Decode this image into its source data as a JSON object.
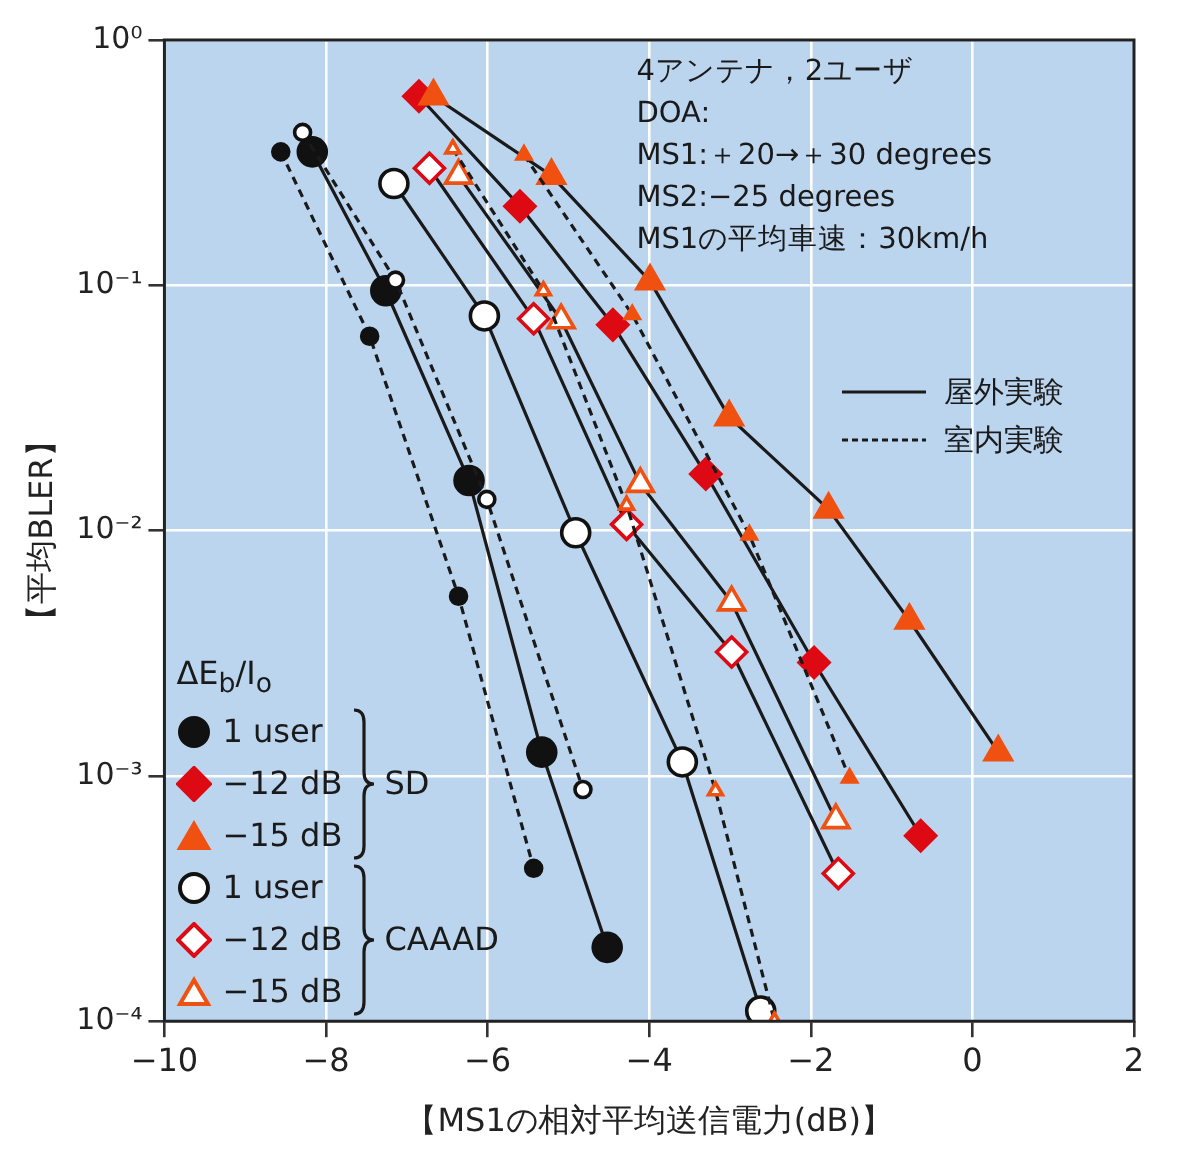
{
  "chart_data": {
    "type": "line",
    "xlabel": "【MS1の相対平均送信電力(dB)】",
    "ylabel": "【平均BLER】",
    "log": "y",
    "grid": true,
    "legend": "bottom left",
    "legend_title": "ΔE$_{b}$/I$_{o}$",
    "xlim": [
      -10,
      2
    ],
    "xticks": [
      {
        "value": -10,
        "label": "−10"
      },
      {
        "value": -8,
        "label": "−8"
      },
      {
        "value": -6,
        "label": "−6"
      },
      {
        "value": -4,
        "label": "−4"
      },
      {
        "value": -2,
        "label": "−2"
      },
      0,
      2
    ],
    "ylim": [
      0.0001,
      1
    ],
    "yticks": [
      {
        "value": 0.0001,
        "label": "10⁻⁴"
      },
      {
        "value": 0.001,
        "label": "10⁻³"
      },
      {
        "value": 0.01,
        "label": "10⁻²"
      },
      {
        "value": 0.1,
        "label": "10⁻¹"
      },
      {
        "value": 1,
        "label": "10⁰"
      }
    ],
    "annotations": [
      "4アンテナ，2ユーザ",
      "DOA:",
      "MS1:＋20→＋30 degrees",
      "MS2:−25 degrees",
      "MS1の平均車速：30km/h",
      "SD",
      "CAAAD",
      "屋外実験",
      "室内実験"
    ],
    "series": [
      {
        "name": "1 user",
        "color": "#111111",
        "marker": "circle",
        "line_style": "solid",
        "x": [
          -8.17,
          -7.26,
          -6.23,
          -5.33,
          -4.52
        ],
        "values": [
          0.35,
          0.095,
          0.016,
          0.00125,
          0.0002
        ]
      },
      {
        "name": "−12 dB",
        "color": "#dd0a14",
        "marker": "diamond",
        "line_style": "solid",
        "x": [
          -6.85,
          -5.6,
          -4.45,
          -3.3,
          -1.96,
          -0.64
        ],
        "values": [
          0.59,
          0.21,
          0.069,
          0.017,
          0.0029,
          0.00057
        ]
      },
      {
        "name": "−15 dB",
        "color": "#f05010",
        "marker": "triangle",
        "line_style": "solid",
        "x": [
          -6.67,
          -5.21,
          -3.99,
          -3.01,
          -1.78,
          -0.78,
          0.32
        ],
        "values": [
          0.59,
          0.28,
          0.104,
          0.029,
          0.0122,
          0.0043,
          0.00125
        ]
      },
      {
        "name": "1 user",
        "color": "#ffffff",
        "marker": "circle",
        "line_style": "solid",
        "x": [
          -7.16,
          -6.04,
          -4.91,
          -3.59,
          -2.62
        ],
        "values": [
          0.26,
          0.075,
          0.0098,
          0.00114,
          0.00011
        ]
      },
      {
        "name": "−12 dB",
        "color": "#ffffff",
        "marker": "diamond",
        "line_style": "solid",
        "x": [
          -6.72,
          -5.43,
          -4.28,
          -2.98,
          -1.66
        ],
        "values": [
          0.3,
          0.073,
          0.0106,
          0.0032,
          0.0004
        ]
      },
      {
        "name": "−15 dB",
        "color": "#ffffff",
        "marker": "triangle",
        "line_style": "solid",
        "x": [
          -6.36,
          -5.09,
          -4.11,
          -2.98,
          -1.69
        ],
        "values": [
          0.28,
          0.072,
          0.0155,
          0.0051,
          0.00066
        ]
      },
      {
        "color": "#111111",
        "marker": "circle",
        "line_style": "dashed",
        "x": [
          -8.56,
          -7.46,
          -6.36,
          -5.43
        ],
        "values": [
          0.35,
          0.062,
          0.0054,
          0.00042
        ]
      },
      {
        "color": "#f05010",
        "marker": "triangle",
        "line_style": "dashed",
        "x": [
          -5.55,
          -4.21,
          -2.76,
          -1.52
        ],
        "values": [
          0.34,
          0.076,
          0.0096,
          0.00098
        ]
      },
      {
        "color": "#ffffff",
        "marker": "circle",
        "line_style": "dashed",
        "x": [
          -8.29,
          -7.14,
          -6.01,
          -4.82
        ],
        "values": [
          0.42,
          0.105,
          0.0134,
          0.00088
        ]
      },
      {
        "color": "#ffffff",
        "marker": "triangle",
        "line_style": "dashed",
        "x": [
          -6.43,
          -5.31,
          -4.28,
          -3.18,
          -2.45
        ],
        "values": [
          0.36,
          0.095,
          0.0127,
          0.00087,
          0.0001
        ]
      }
    ]
  }
}
